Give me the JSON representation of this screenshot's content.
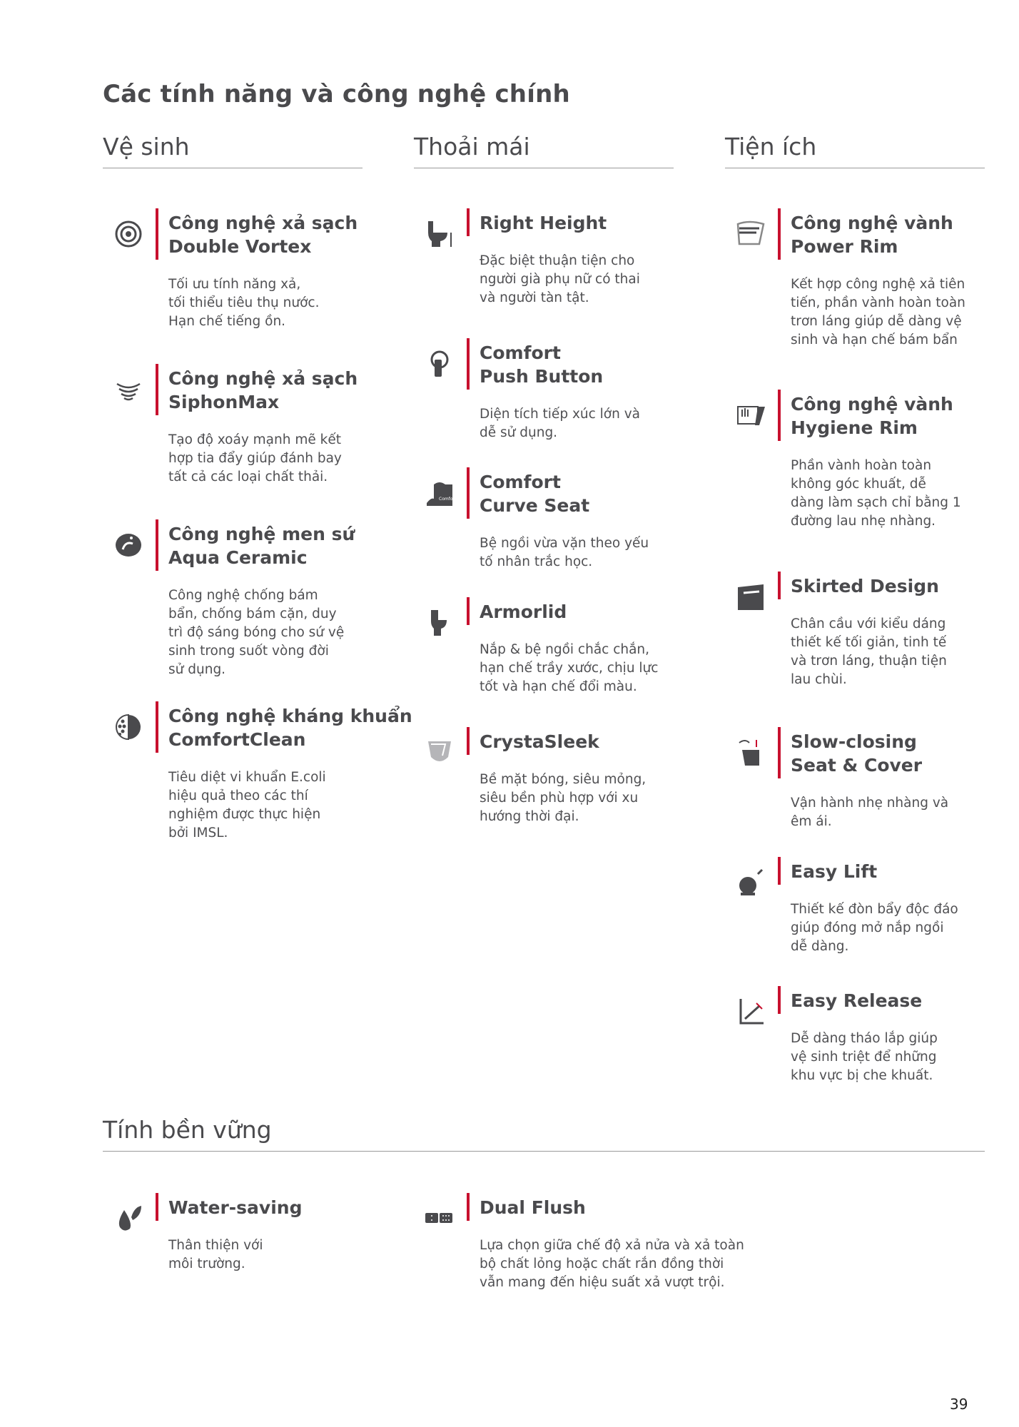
{
  "page_title": "Các tính năng và công nghệ chính",
  "accent_color": "#c8102e",
  "columns": [
    {
      "heading": "Vệ sinh",
      "items": [
        {
          "icon": "double-vortex-icon",
          "title": [
            "Công nghệ xả sạch",
            "Double Vortex"
          ],
          "desc": [
            "Tối ưu tính năng xả,",
            "tối thiểu tiêu thụ nước.",
            "Hạn chế tiếng ồn."
          ]
        },
        {
          "icon": "siphonmax-icon",
          "title": [
            "Công nghệ xả sạch",
            "SiphonMax"
          ],
          "desc": [
            "Tạo độ xoáy mạnh mẽ kết",
            "hợp tia đẩy giúp đánh bay",
            "tất cả các loại chất thải."
          ]
        },
        {
          "icon": "aqua-ceramic-icon",
          "title": [
            "Công nghệ men sứ",
            "Aqua Ceramic"
          ],
          "desc": [
            "Công nghệ chống bám",
            "bẩn, chống bám cặn, duy",
            "trì độ sáng bóng cho sứ vệ",
            "sinh trong suốt vòng đời",
            "sử dụng."
          ]
        },
        {
          "icon": "comfortclean-icon",
          "title": [
            "Công nghệ kháng khuẩn",
            "ComfortClean"
          ],
          "desc": [
            "Tiêu diệt vi khuẩn E.coli",
            "hiệu quả theo các thí",
            "nghiệm được thực hiện",
            "bởi IMSL."
          ]
        }
      ]
    },
    {
      "heading": "Thoải mái",
      "items": [
        {
          "icon": "right-height-icon",
          "title": [
            "Right Height"
          ],
          "desc": [
            "Đặc biệt thuận tiện cho",
            "người già phụ nữ có thai",
            "và người tàn tật."
          ]
        },
        {
          "icon": "push-button-icon",
          "title": [
            "Comfort",
            "Push Button"
          ],
          "desc": [
            "Diện tích tiếp xúc lớn và",
            "dễ sử dụng."
          ]
        },
        {
          "icon": "comfort-curve-icon",
          "icon_text": "Comfort Curve",
          "title": [
            "Comfort",
            "Curve Seat"
          ],
          "desc": [
            "Bệ ngồi vừa vặn theo yếu",
            "tố nhân trắc học."
          ]
        },
        {
          "icon": "armorlid-icon",
          "title": [
            "Armorlid"
          ],
          "desc": [
            "Nắp & bệ ngồi chắc chắn,",
            "hạn chế trầy xước, chịu lực",
            "tốt và hạn chế đổi màu."
          ]
        },
        {
          "icon": "crystasleek-icon",
          "title": [
            "CrystaSleek"
          ],
          "desc": [
            "Bề mặt bóng, siêu mỏng,",
            "siêu bền phù hợp với xu",
            "hướng thời đại."
          ]
        }
      ]
    },
    {
      "heading": "Tiện ích",
      "items": [
        {
          "icon": "power-rim-icon",
          "title": [
            "Công nghệ vành",
            "Power Rim"
          ],
          "desc": [
            "Kết hợp công nghệ xả tiên",
            "tiến, phần vành hoàn toàn",
            "trơn láng giúp dễ dàng vệ",
            "sinh và hạn chế bám bẩn"
          ]
        },
        {
          "icon": "hygiene-rim-icon",
          "title": [
            "Công nghệ vành",
            "Hygiene Rim"
          ],
          "desc": [
            "Phần vành hoàn toàn",
            "không góc khuất, dễ",
            "dàng làm sạch chỉ bằng 1",
            "đường lau nhẹ nhàng."
          ]
        },
        {
          "icon": "skirted-design-icon",
          "title": [
            "Skirted Design"
          ],
          "desc": [
            "Chân cầu với kiểu dáng",
            "thiết kế tối giản, tinh tế",
            "và trơn láng, thuận tiện",
            "lau chùi."
          ]
        },
        {
          "icon": "slow-closing-icon",
          "title": [
            "Slow-closing",
            "Seat & Cover"
          ],
          "desc": [
            "Vận hành nhẹ nhàng và",
            "êm ái."
          ]
        },
        {
          "icon": "easy-lift-icon",
          "title": [
            "Easy Lift"
          ],
          "desc": [
            "Thiết kế đòn bẩy độc đáo",
            "giúp đóng mở nắp ngồi",
            "dễ dàng."
          ]
        },
        {
          "icon": "easy-release-icon",
          "title": [
            "Easy Release"
          ],
          "desc": [
            "Dễ dàng tháo lắp giúp",
            "vệ sinh triệt để những",
            "khu vực bị che khuất."
          ]
        }
      ]
    }
  ],
  "sustainability": {
    "heading": "Tính bền vững",
    "items": [
      {
        "icon": "water-saving-icon",
        "title": [
          "Water-saving"
        ],
        "desc": [
          "Thân thiện với",
          "môi trường."
        ]
      },
      {
        "icon": "dual-flush-icon",
        "title": [
          "Dual Flush"
        ],
        "desc": [
          "Lựa chọn giữa chế độ xả nửa và xả toàn",
          "bộ chất lỏng hoặc chất rắn đồng thời",
          "vẫn mang đến hiệu suất xả vượt trội."
        ]
      }
    ]
  },
  "page_number": "39"
}
